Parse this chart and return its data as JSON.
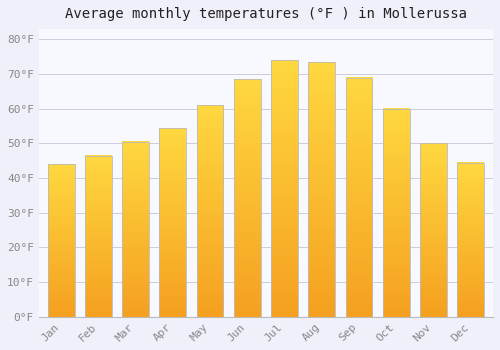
{
  "title": "Average monthly temperatures (°F ) in Mollerussa",
  "months": [
    "Jan",
    "Feb",
    "Mar",
    "Apr",
    "May",
    "Jun",
    "Jul",
    "Aug",
    "Sep",
    "Oct",
    "Nov",
    "Dec"
  ],
  "values": [
    44,
    46.5,
    50.5,
    54.5,
    61,
    68.5,
    74,
    73.5,
    69,
    60,
    50,
    44.5
  ],
  "bar_gradient_bottom": "#F5A020",
  "bar_gradient_top": "#FFD840",
  "bar_edge_color": "#BBBBBB",
  "background_color": "#F0F0FA",
  "plot_bg_color": "#F8F8FF",
  "grid_color": "#CCCCDD",
  "tick_label_color": "#888888",
  "title_color": "#222222",
  "ylim": [
    0,
    83
  ],
  "yticks": [
    0,
    10,
    20,
    30,
    40,
    50,
    60,
    70,
    80
  ],
  "title_fontsize": 10,
  "tick_fontsize": 8,
  "bar_width": 0.72
}
